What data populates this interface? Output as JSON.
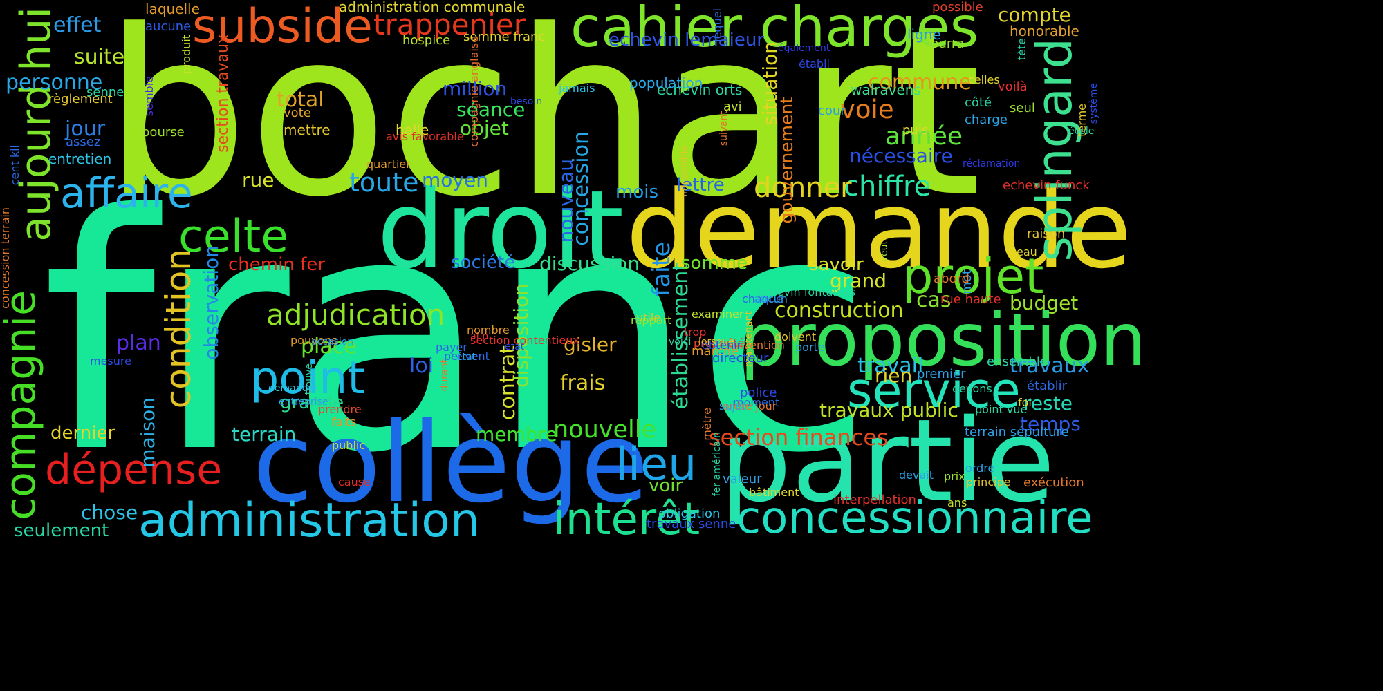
{
  "words": [
    {
      "text": "bochart",
      "color": "#9ee51e"
    },
    {
      "text": "franc",
      "color": "#17e898"
    },
    {
      "text": "droit",
      "color": "#1ee59b"
    },
    {
      "text": "demande",
      "color": "#e5d51d"
    },
    {
      "text": "collège",
      "color": "#1d6ae8"
    },
    {
      "text": "partie",
      "color": "#24e3ad"
    },
    {
      "text": "proposition",
      "color": "#34df5a"
    },
    {
      "text": "cahier charges",
      "color": "#7ee52a"
    },
    {
      "text": "subside",
      "color": "#ed5b22"
    },
    {
      "text": "administration",
      "color": "#24c7e6"
    },
    {
      "text": "concessionnaire",
      "color": "#22dfc3"
    },
    {
      "text": "intérêt",
      "color": "#1de090"
    },
    {
      "text": "compagnie",
      "color": "#46df26"
    },
    {
      "text": "aujourd hui",
      "color": "#7de32b"
    },
    {
      "text": "affaire",
      "color": "#2db3ec"
    },
    {
      "text": "projet",
      "color": "#5fe22a"
    },
    {
      "text": "splingard",
      "color": "#3de08f"
    },
    {
      "text": "service",
      "color": "#22e3ba"
    },
    {
      "text": "point",
      "color": "#1fbce8"
    },
    {
      "text": "condition",
      "color": "#e2c323"
    },
    {
      "text": "dépense",
      "color": "#e61f1f"
    },
    {
      "text": "lieu",
      "color": "#1ea6e9"
    },
    {
      "text": "celte",
      "color": "#3ae12c"
    },
    {
      "text": "adjudication",
      "color": "#8ee526"
    },
    {
      "text": "trappenier",
      "color": "#e6381c"
    },
    {
      "text": "nouvelle",
      "color": "#46e12a"
    },
    {
      "text": "section finances",
      "color": "#e94a1c"
    },
    {
      "text": "chiffre",
      "color": "#2be4a7"
    },
    {
      "text": "donner",
      "color": "#e4d41f"
    },
    {
      "text": "construction",
      "color": "#c9e21f"
    },
    {
      "text": "travaux public",
      "color": "#bfe224"
    },
    {
      "text": "établissement",
      "color": "#2bd993"
    },
    {
      "text": "faite",
      "color": "#2196e6"
    },
    {
      "text": "année",
      "color": "#5ce33a"
    },
    {
      "text": "nécessaire",
      "color": "#2850e6"
    },
    {
      "text": "situation",
      "color": "#e3d524"
    },
    {
      "text": "gouvernement",
      "color": "#e47c1e"
    },
    {
      "text": "voie",
      "color": "#e57d1e"
    },
    {
      "text": "commune",
      "color": "#e4971d"
    },
    {
      "text": "section travaux",
      "color": "#e44a1e"
    },
    {
      "text": "toute",
      "color": "#2aa6e6"
    },
    {
      "text": "moyen",
      "color": "#2673e2"
    },
    {
      "text": "société",
      "color": "#2a7ae6"
    },
    {
      "text": "discussion",
      "color": "#30e18b"
    },
    {
      "text": "somme",
      "color": "#6ce22b"
    },
    {
      "text": "savoir",
      "color": "#dde228"
    },
    {
      "text": "grand",
      "color": "#d8e42a"
    },
    {
      "text": "cas",
      "color": "#8ce32d"
    },
    {
      "text": "budget",
      "color": "#9ce42a"
    },
    {
      "text": "chemin fer",
      "color": "#e92f1f"
    },
    {
      "text": "rue",
      "color": "#d8e22a"
    },
    {
      "text": "mois",
      "color": "#1ea0ea"
    },
    {
      "text": "lettre",
      "color": "#2166e6"
    },
    {
      "text": "concession",
      "color": "#24a9e6"
    },
    {
      "text": "nouveau",
      "color": "#2764e6"
    },
    {
      "text": "million",
      "color": "#2c53e6"
    },
    {
      "text": "séance",
      "color": "#35e35c"
    },
    {
      "text": "objet",
      "color": "#62e436"
    },
    {
      "text": "total",
      "color": "#e2a327"
    },
    {
      "text": "jour",
      "color": "#2c7fe6"
    },
    {
      "text": "suite",
      "color": "#b9e42c"
    },
    {
      "text": "effet",
      "color": "#2c9ae6"
    },
    {
      "text": "personne",
      "color": "#2aa7e6"
    },
    {
      "text": "observation",
      "color": "#2488e6"
    },
    {
      "text": "plan",
      "color": "#5a2ce6"
    },
    {
      "text": "place",
      "color": "#64e22c"
    },
    {
      "text": "grande",
      "color": "#2ad98b"
    },
    {
      "text": "gisler",
      "color": "#e4b22a"
    },
    {
      "text": "frais",
      "color": "#e4d22a"
    },
    {
      "text": "loi",
      "color": "#2c62e6"
    },
    {
      "text": "maison",
      "color": "#2cb0e6"
    },
    {
      "text": "contrat",
      "color": "#d7e22a"
    },
    {
      "text": "disposition",
      "color": "#8ee22c"
    },
    {
      "text": "travail",
      "color": "#2ac2e6"
    },
    {
      "text": "rien",
      "color": "#e2d62c"
    },
    {
      "text": "travaux",
      "color": "#2a9be6"
    },
    {
      "text": "reste",
      "color": "#24d7b4"
    },
    {
      "text": "temps",
      "color": "#2c5ce6"
    },
    {
      "text": "terrain",
      "color": "#2ad8c4"
    },
    {
      "text": "membre",
      "color": "#3fe22c"
    },
    {
      "text": "dernier",
      "color": "#e4d42a"
    },
    {
      "text": "voir",
      "color": "#6fe22c"
    },
    {
      "text": "chose",
      "color": "#2ac4e6"
    },
    {
      "text": "seulement",
      "color": "#2ad6a4"
    },
    {
      "text": "compte",
      "color": "#e2d62c"
    },
    {
      "text": "echevin lemaieur",
      "color": "#2c54e6"
    },
    {
      "text": "echevin orts",
      "color": "#2ad6a4"
    },
    {
      "text": "population",
      "color": "#2aa7e6"
    },
    {
      "text": "walravens",
      "color": "#3ae28f"
    },
    {
      "text": "ligne",
      "color": "#2aa0e6"
    },
    {
      "text": "pourra",
      "color": "#9ee22a"
    },
    {
      "text": "honorable",
      "color": "#e2a02a"
    },
    {
      "text": "administration communale",
      "color": "#e2d62c"
    },
    {
      "text": "laquelle",
      "color": "#e49a2a"
    },
    {
      "text": "aucune",
      "color": "#2c5ae6"
    },
    {
      "text": "possible",
      "color": "#e4402a"
    },
    {
      "text": "somme franc",
      "color": "#e2d62c"
    },
    {
      "text": "hospice",
      "color": "#bae22c"
    },
    {
      "text": "compagnie anglaise",
      "color": "#e26c2c"
    },
    {
      "text": "règlement",
      "color": "#e2c82c"
    },
    {
      "text": "senne",
      "color": "#2ad6a4"
    },
    {
      "text": "vote",
      "color": "#e2a42c"
    },
    {
      "text": "mettre",
      "color": "#e2c42c"
    },
    {
      "text": "bourse",
      "color": "#9ee22c"
    },
    {
      "text": "produit",
      "color": "#c8e22c"
    },
    {
      "text": "semble",
      "color": "#4a2ce6"
    },
    {
      "text": "assez",
      "color": "#2a6ae6"
    },
    {
      "text": "entretien",
      "color": "#2ac4e6"
    },
    {
      "text": "cent kil",
      "color": "#2a6ae6"
    },
    {
      "text": "concession terrain",
      "color": "#e4782a"
    },
    {
      "text": "halle",
      "color": "#e2d62c"
    },
    {
      "text": "besoin",
      "color": "#2c4ae6"
    },
    {
      "text": "avis favorable",
      "color": "#e4302a"
    },
    {
      "text": "quartier",
      "color": "#e29a2c"
    },
    {
      "text": "impossible",
      "color": "#e2c42c"
    },
    {
      "text": "suivant",
      "color": "#e2762c"
    },
    {
      "text": "jamais",
      "color": "#2ac4e6"
    },
    {
      "text": "avi",
      "color": "#c4e22c"
    },
    {
      "text": "cour",
      "color": "#2aa0e6"
    },
    {
      "text": "puis",
      "color": "#e2d62c"
    },
    {
      "text": "lequel",
      "color": "#2a6ae6"
    },
    {
      "text": "également",
      "color": "#2c3ae6"
    },
    {
      "text": "établi",
      "color": "#2c4ae6"
    },
    {
      "text": "celles",
      "color": "#e2d62c"
    },
    {
      "text": "voilà",
      "color": "#e4302a"
    },
    {
      "text": "seul",
      "color": "#9ee22c"
    },
    {
      "text": "côté",
      "color": "#2ad6a4"
    },
    {
      "text": "charge",
      "color": "#2aa7e6"
    },
    {
      "text": "terme",
      "color": "#e2c82c"
    },
    {
      "text": "école",
      "color": "#2ad6a4"
    },
    {
      "text": "système",
      "color": "#2c4ae6"
    },
    {
      "text": "tète",
      "color": "#2ad6a4"
    },
    {
      "text": "réclamation",
      "color": "#2c3ae6"
    },
    {
      "text": "echevin funck",
      "color": "#e4302a"
    },
    {
      "text": "raison",
      "color": "#e2c42c"
    },
    {
      "text": "eau",
      "color": "#e2d62c"
    },
    {
      "text": "mot",
      "color": "#2aa0e6"
    },
    {
      "text": "abord",
      "color": "#e4782a"
    },
    {
      "text": "rue haute",
      "color": "#e4302a"
    },
    {
      "text": "ensemble",
      "color": "#2ad6a4"
    },
    {
      "text": "établir",
      "color": "#2c6ae6"
    },
    {
      "text": "foi",
      "color": "#e2d62c"
    },
    {
      "text": "point vue",
      "color": "#2ad6a4"
    },
    {
      "text": "premier",
      "color": "#2aa0e6"
    },
    {
      "text": "devons",
      "color": "#2ad6a4"
    },
    {
      "text": "terrain sépulture",
      "color": "#2aa0e6"
    },
    {
      "text": "ordre",
      "color": "#2aa0e6"
    },
    {
      "text": "prix",
      "color": "#9ee22c"
    },
    {
      "text": "devait",
      "color": "#2aa0e6"
    },
    {
      "text": "principe",
      "color": "#e2c42c"
    },
    {
      "text": "exécution",
      "color": "#e4782a"
    },
    {
      "text": "ans",
      "color": "#c4e22c"
    },
    {
      "text": "interpellation",
      "color": "#e4302a"
    },
    {
      "text": "travaux senne",
      "color": "#2c4ae6"
    },
    {
      "text": "obligation",
      "color": "#2ac4e6"
    },
    {
      "text": "valeur",
      "color": "#2aa0e6"
    },
    {
      "text": "bâtiment",
      "color": "#e2d62c"
    },
    {
      "text": "fer américain",
      "color": "#2ad6a4"
    },
    {
      "text": "mètre",
      "color": "#e4782a"
    },
    {
      "text": "maintenant",
      "color": "#e2c42c"
    },
    {
      "text": "directeur",
      "color": "#2c4ae6"
    },
    {
      "text": "police",
      "color": "#2c4ae6"
    },
    {
      "text": "moment",
      "color": "#2c6ae6"
    },
    {
      "text": "ordre jour",
      "color": "#e4782a"
    },
    {
      "text": "sujet",
      "color": "#2aa0e6"
    },
    {
      "text": "chaque",
      "color": "#2c6ae6"
    },
    {
      "text": "aucun",
      "color": "#2aa0e6"
    },
    {
      "text": "echevin fontainas",
      "color": "#2ad6a4"
    },
    {
      "text": "doivent",
      "color": "#e2c42c"
    },
    {
      "text": "porte",
      "color": "#2aa0e6"
    },
    {
      "text": "convention",
      "color": "#e4782a"
    },
    {
      "text": "propriété",
      "color": "#e4482a"
    },
    {
      "text": "trop",
      "color": "#e4302a"
    },
    {
      "text": "veut",
      "color": "#9ee22c"
    },
    {
      "text": "lorsque",
      "color": "#e2c42c"
    },
    {
      "text": "marché",
      "color": "#e4982a"
    },
    {
      "text": "voici",
      "color": "#2ad6a4"
    },
    {
      "text": "obtenir",
      "color": "#2c4ae6"
    },
    {
      "text": "examiner",
      "color": "#c4e22c"
    },
    {
      "text": "utile",
      "color": "#e2c42c"
    },
    {
      "text": "rapport",
      "color": "#9ee22c"
    },
    {
      "text": "état",
      "color": "#2c4ae6"
    },
    {
      "text": "afin",
      "color": "#e4302a"
    },
    {
      "text": "nombre",
      "color": "#e4982a"
    },
    {
      "text": "payer",
      "color": "#2c6ae6"
    },
    {
      "text": "peuvent",
      "color": "#2c6ae6"
    },
    {
      "text": "durant",
      "color": "#e4782a"
    },
    {
      "text": "mesure",
      "color": "#2c4ae6"
    },
    {
      "text": "état",
      "color": "#2aa0e6"
    },
    {
      "text": "section contentieux",
      "color": "#e4302a"
    },
    {
      "text": "pouvons",
      "color": "#e4982a"
    },
    {
      "text": "occasion",
      "color": "#2aa0e6"
    },
    {
      "text": "trouve",
      "color": "#2ad6a4"
    },
    {
      "text": "demander",
      "color": "#2ac4e6"
    },
    {
      "text": "entreprise",
      "color": "#2aa0e6"
    },
    {
      "text": "prendre",
      "color": "#e4482a"
    },
    {
      "text": "faits",
      "color": "#e4982a"
    },
    {
      "text": "public",
      "color": "#c4e22c"
    },
    {
      "text": "cause",
      "color": "#e4302a"
    },
    {
      "text": "boulevard",
      "color": "#e2c42c"
    }
  ]
}
